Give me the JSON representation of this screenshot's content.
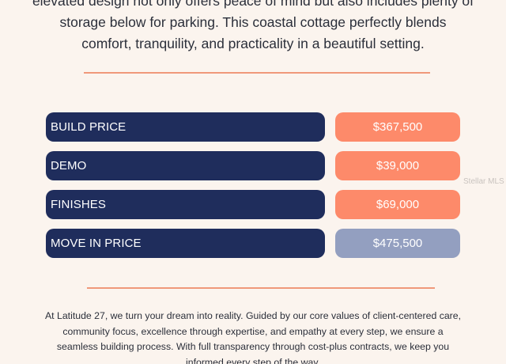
{
  "intro": {
    "lines": [
      "elevated design not only offers peace of mind but also includes plenty of",
      "storage below for parking. This coastal cottage perfectly blends",
      "comfort, tranquility, and practicality in a beautiful setting."
    ]
  },
  "pricing": {
    "rows": [
      {
        "label": "BUILD PRICE",
        "value": "$367,500"
      },
      {
        "label": "DEMO",
        "value": "$39,000"
      },
      {
        "label": "FINISHES",
        "value": "$69,000"
      },
      {
        "label": "MOVE IN PRICE",
        "value": "$475,500"
      }
    ]
  },
  "watermark": "Stellar MLS",
  "footer": {
    "lines": [
      "At Latitude 27, we turn your dream into reality. Guided by our core values of client-centered care,",
      "community focus, excellence through expertise, and empathy at every step, we ensure a",
      "seamless building process. With full transparency through cost-plus contracts, we keep you",
      "informed every step of the way."
    ]
  },
  "colors": {
    "background": "#fbf4ee",
    "label_bar": "#1f2d5c",
    "value_pill": "#fd8a6a",
    "total_pill": "#939fc0",
    "divider": "#f0987a"
  }
}
